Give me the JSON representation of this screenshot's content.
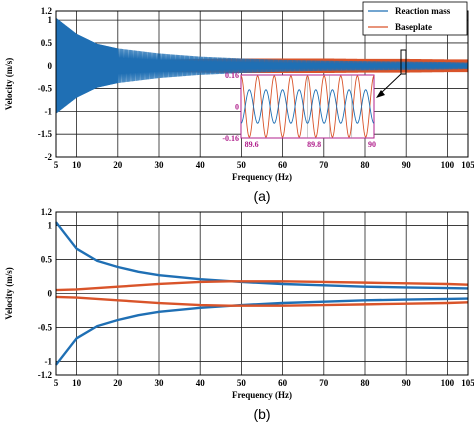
{
  "chart_data": [
    {
      "type": "line",
      "panel_label": "(a)",
      "xlabel": "Frequency (Hz)",
      "ylabel": "Velocity (m/s)",
      "xlim": [
        5,
        105
      ],
      "ylim": [
        -2,
        1.2
      ],
      "xticks": [
        5,
        10,
        20,
        30,
        40,
        50,
        60,
        70,
        80,
        90,
        100,
        105
      ],
      "yticks": [
        1.2,
        1,
        0.5,
        0,
        -0.5,
        -1,
        -1.5,
        -2
      ],
      "ytick_labels": [
        "1.2",
        "1",
        "0.5",
        "0",
        "-0.5",
        "-1",
        "-1.5",
        "-2"
      ],
      "grid": true,
      "legend_position": "top-right",
      "series": [
        {
          "name": "Reaction mass",
          "color": "#1f6fb4",
          "envelope_x": [
            5,
            10,
            15,
            20,
            30,
            40,
            50,
            60,
            70,
            80,
            90,
            100,
            105
          ],
          "envelope_amplitude": [
            1.05,
            0.7,
            0.48,
            0.38,
            0.27,
            0.2,
            0.16,
            0.13,
            0.11,
            0.1,
            0.09,
            0.08,
            0.07
          ]
        },
        {
          "name": "Baseplate",
          "color": "#d9542a",
          "envelope_x": [
            5,
            10,
            15,
            20,
            30,
            40,
            50,
            60,
            70,
            80,
            90,
            100,
            105
          ],
          "envelope_amplitude": [
            0.04,
            0.06,
            0.08,
            0.1,
            0.13,
            0.15,
            0.16,
            0.16,
            0.16,
            0.15,
            0.15,
            0.14,
            0.14
          ]
        }
      ],
      "inset": {
        "xlim": [
          89.6,
          90
        ],
        "ylim": [
          -0.16,
          0.16
        ],
        "xticks": [
          "89.6",
          "89.8",
          "90"
        ],
        "yticks": [
          "0.16",
          "0",
          "-0.16"
        ],
        "tick_color": "#b0208c",
        "cycles": 8
      }
    },
    {
      "type": "line",
      "panel_label": "(b)",
      "xlabel": "Frequency (Hz)",
      "ylabel": "Velocity (m/s)",
      "xlim": [
        5,
        105
      ],
      "ylim": [
        -1.2,
        1.2
      ],
      "xticks": [
        5,
        10,
        20,
        30,
        40,
        50,
        60,
        70,
        80,
        90,
        100,
        105
      ],
      "yticks": [
        1.2,
        1,
        0.5,
        0,
        -0.5,
        -1,
        -1.2
      ],
      "ytick_labels": [
        "1.2",
        "1",
        "0.5",
        "0",
        "-0.5",
        "-1",
        "-1.2"
      ],
      "grid": true,
      "series": [
        {
          "color": "#1f6fb4",
          "x": [
            5,
            10,
            15,
            20,
            25,
            30,
            40,
            50,
            60,
            70,
            80,
            90,
            100,
            105
          ],
          "upper": [
            1.05,
            0.66,
            0.48,
            0.39,
            0.32,
            0.27,
            0.21,
            0.17,
            0.14,
            0.12,
            0.1,
            0.09,
            0.08,
            0.075
          ]
        },
        {
          "color": "#d9542a",
          "x": [
            5,
            10,
            20,
            30,
            40,
            47,
            50,
            60,
            70,
            80,
            90,
            100,
            105
          ],
          "upper": [
            0.05,
            0.06,
            0.1,
            0.14,
            0.17,
            0.18,
            0.18,
            0.18,
            0.17,
            0.16,
            0.15,
            0.14,
            0.13
          ]
        }
      ]
    }
  ]
}
